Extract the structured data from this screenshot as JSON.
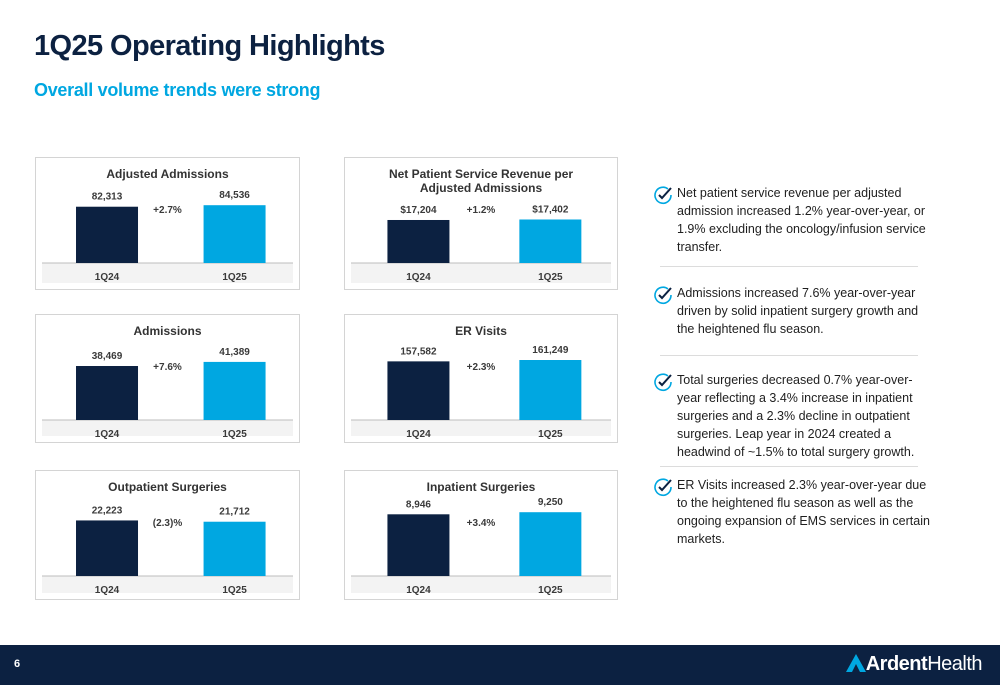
{
  "title": "1Q25 Operating Highlights",
  "subtitle": "Overall volume trends were strong",
  "chart_data": [
    {
      "type": "bar",
      "title": "Adjusted Admissions",
      "categories": [
        "1Q24",
        "1Q25"
      ],
      "values": [
        82313,
        84536
      ],
      "value_labels": [
        "82,313",
        "84,536"
      ],
      "annotation": "+2.7%",
      "colors": [
        "#0c2141",
        "#00a7e1"
      ],
      "ylim": [
        0,
        117000
      ]
    },
    {
      "type": "bar",
      "title": "Net Patient Service Revenue per Adjusted Admissions",
      "categories": [
        "1Q24",
        "1Q25"
      ],
      "values": [
        17204,
        17402
      ],
      "value_labels": [
        "$17,204",
        "$17,402"
      ],
      "annotation": "+1.2%",
      "colors": [
        "#0c2141",
        "#00a7e1"
      ],
      "ylim": [
        0,
        32000
      ]
    },
    {
      "type": "bar",
      "title": "Admissions",
      "categories": [
        "1Q24",
        "1Q25"
      ],
      "values": [
        38469,
        41389
      ],
      "value_labels": [
        "38,469",
        "41,389"
      ],
      "annotation": "+7.6%",
      "colors": [
        "#0c2141",
        "#00a7e1"
      ],
      "ylim": [
        0,
        57000
      ]
    },
    {
      "type": "bar",
      "title": "ER Visits",
      "categories": [
        "1Q24",
        "1Q25"
      ],
      "values": [
        157582,
        161249
      ],
      "value_labels": [
        "157,582",
        "161,249"
      ],
      "annotation": "+2.3%",
      "colors": [
        "#0c2141",
        "#00a7e1"
      ],
      "ylim": [
        0,
        215000
      ]
    },
    {
      "type": "bar",
      "title": "Outpatient Surgeries",
      "categories": [
        "1Q24",
        "1Q25"
      ],
      "values": [
        22223,
        21712
      ],
      "value_labels": [
        "22,223",
        "21,712"
      ],
      "annotation": "(2.3)%",
      "colors": [
        "#0c2141",
        "#00a7e1"
      ],
      "ylim": [
        0,
        32000
      ]
    },
    {
      "type": "bar",
      "title": "Inpatient Surgeries",
      "categories": [
        "1Q24",
        "1Q25"
      ],
      "values": [
        8946,
        9250
      ],
      "value_labels": [
        "8,946",
        "9,250"
      ],
      "annotation": "+3.4%",
      "colors": [
        "#0c2141",
        "#00a7e1"
      ],
      "ylim": [
        0,
        11600
      ]
    }
  ],
  "bullets": [
    "Net patient service revenue per adjusted admission increased 1.2% year-over-year, or 1.9% excluding the oncology/infusion service transfer.",
    "Admissions increased 7.6% year-over-year driven by solid inpatient surgery growth and the heightened flu season.",
    "Total surgeries decreased 0.7% year-over-year reflecting a 3.4% increase in inpatient surgeries and a 2.3% decline in outpatient surgeries. Leap year in 2024 created a headwind of ~1.5% to total surgery growth.",
    "ER Visits increased 2.3% year-over-year due to the heightened flu season as well as the ongoing expansion of EMS services in certain markets."
  ],
  "footer": {
    "page": "6",
    "brand": "Ardent",
    "brand_suffix": "Health"
  }
}
